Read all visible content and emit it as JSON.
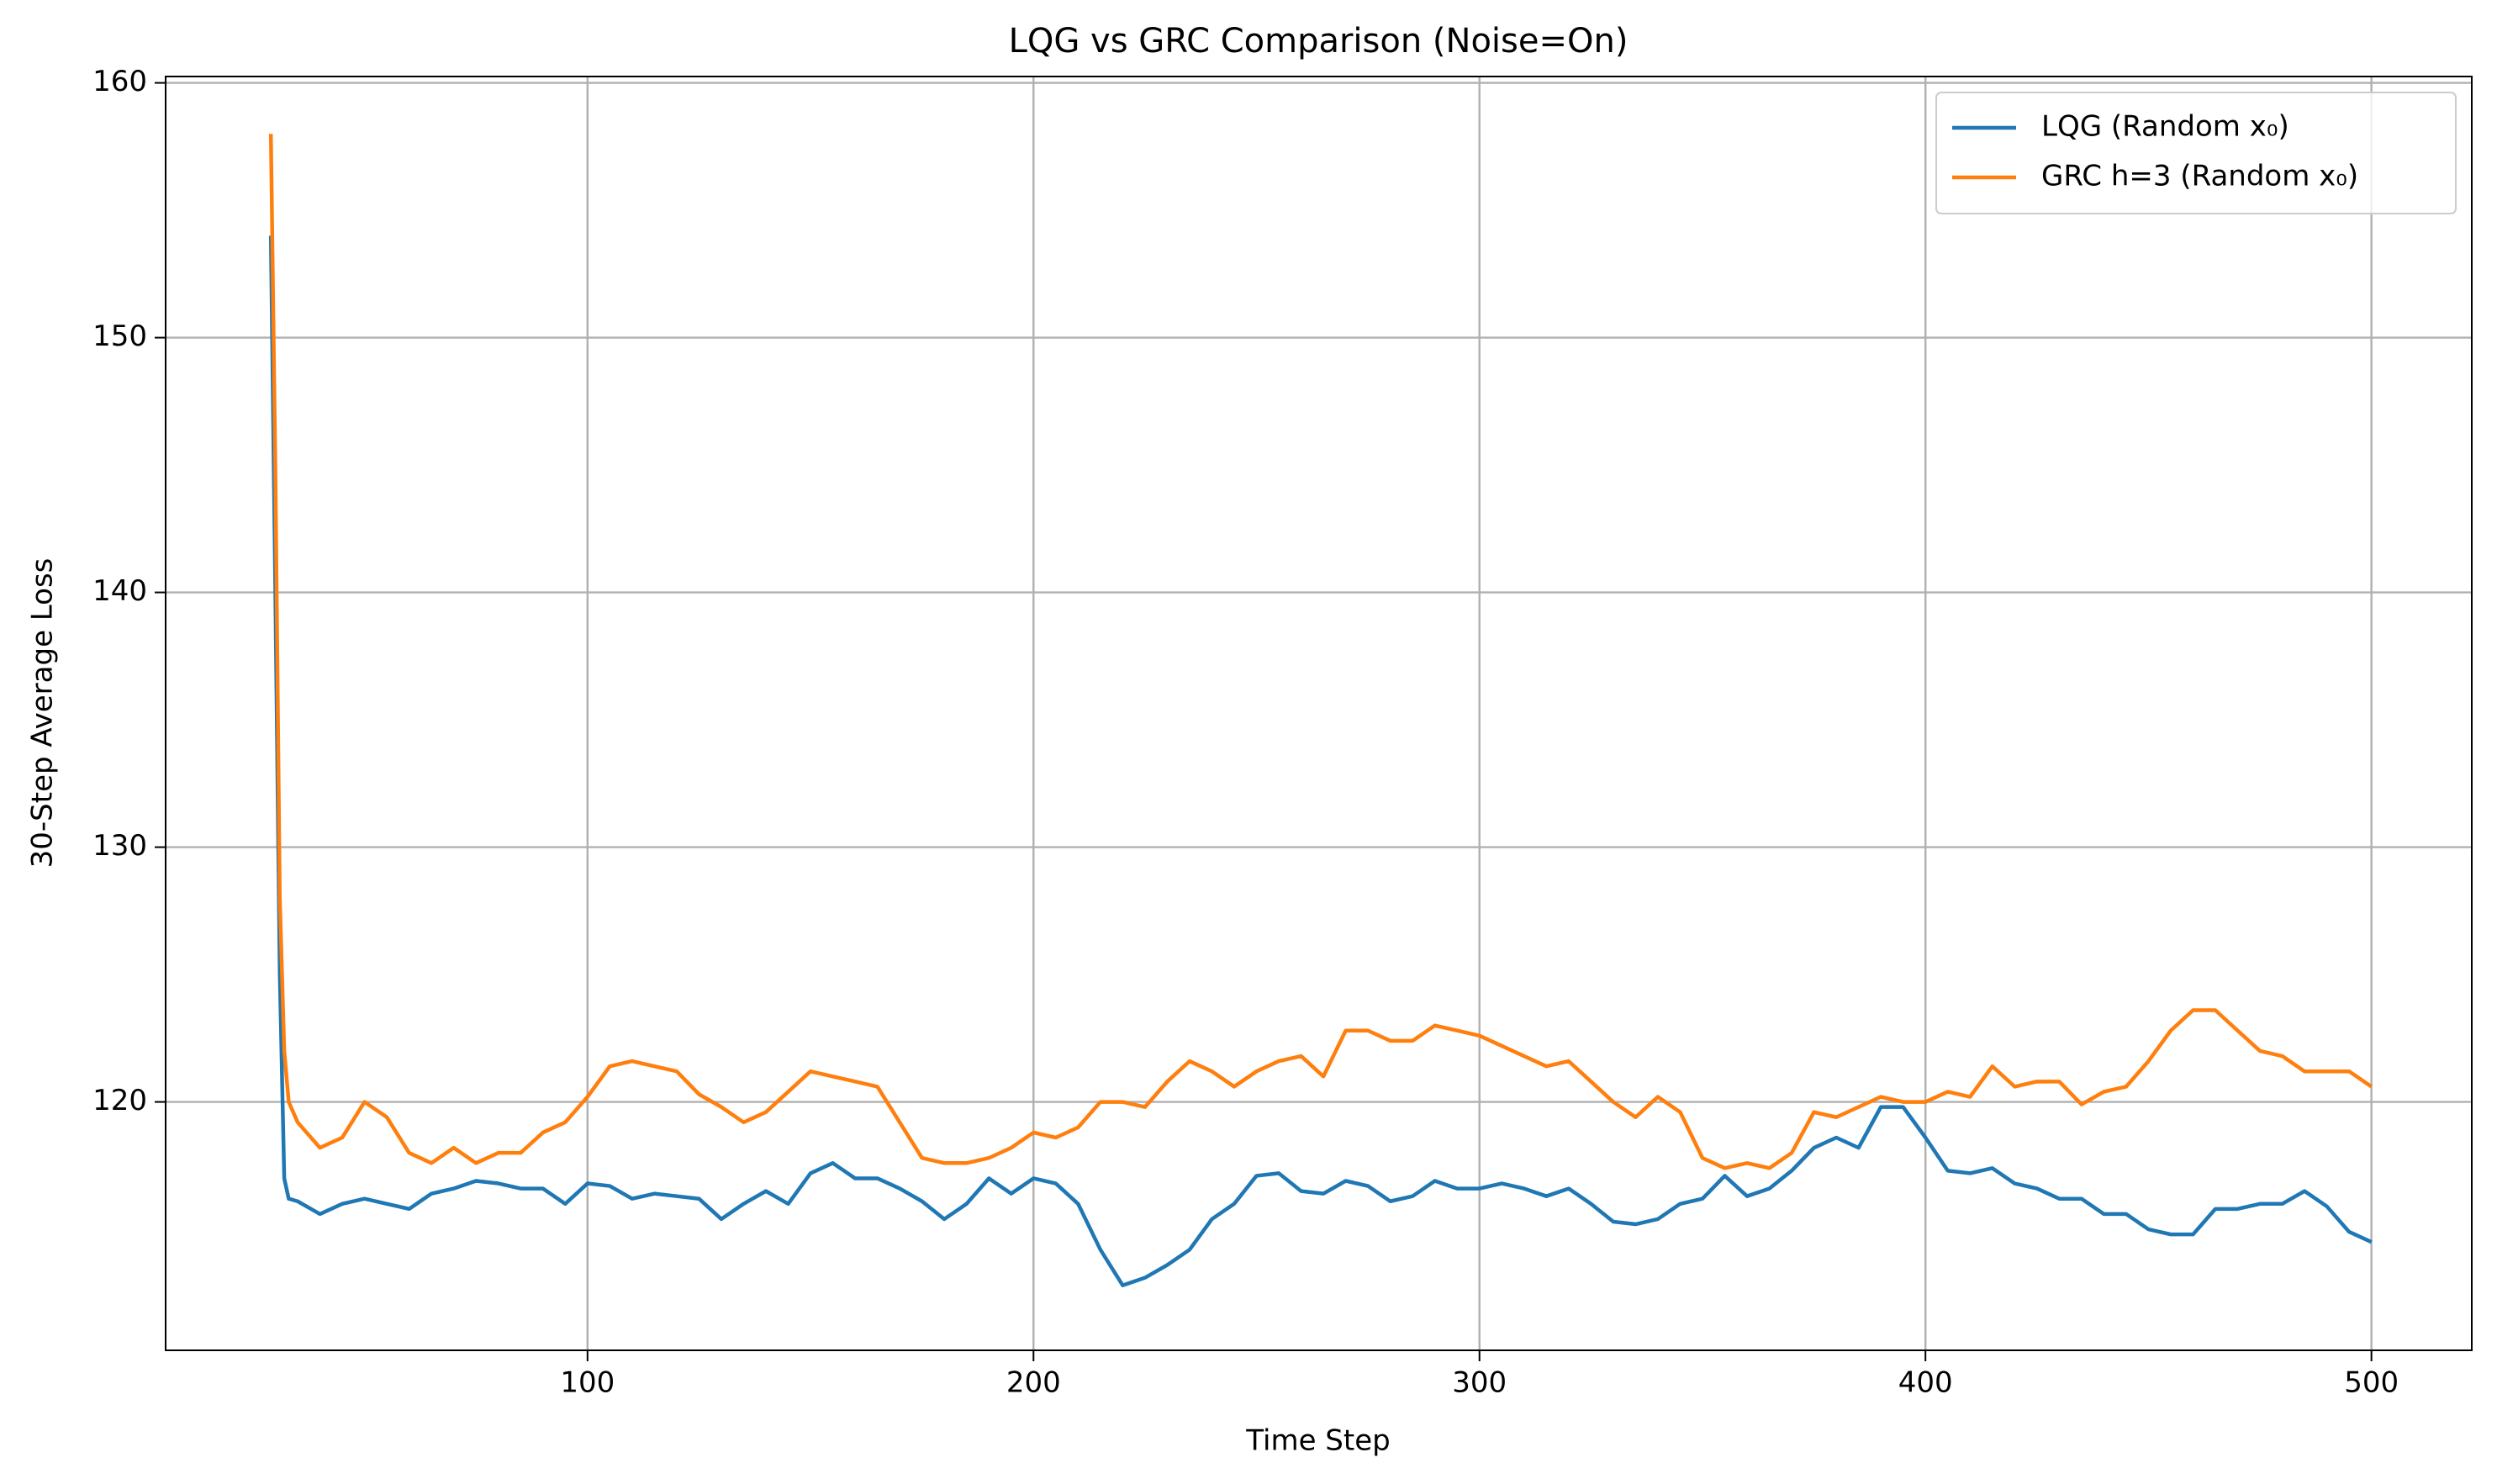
{
  "chart_data": {
    "type": "line",
    "title": "LQG vs GRC Comparison (Noise=On)",
    "x_label": "Time Step",
    "y_label": "30-Step Average Loss",
    "x": [
      29,
      30,
      31,
      32,
      33,
      35,
      40,
      45,
      50,
      55,
      60,
      65,
      70,
      75,
      80,
      85,
      90,
      95,
      100,
      105,
      110,
      115,
      120,
      125,
      130,
      135,
      140,
      145,
      150,
      155,
      160,
      165,
      170,
      175,
      180,
      185,
      190,
      195,
      200,
      205,
      210,
      215,
      220,
      225,
      230,
      235,
      240,
      245,
      250,
      255,
      260,
      265,
      270,
      275,
      280,
      285,
      290,
      295,
      300,
      305,
      310,
      315,
      320,
      325,
      330,
      335,
      340,
      345,
      350,
      355,
      360,
      365,
      370,
      375,
      380,
      385,
      390,
      395,
      400,
      405,
      410,
      415,
      420,
      425,
      430,
      435,
      440,
      445,
      450,
      455,
      460,
      465,
      470,
      475,
      480,
      485,
      490,
      495,
      500
    ],
    "series": [
      {
        "name": "LQG (Random x₀)",
        "color": "#1f77b4",
        "values": [
          154,
          140,
          125,
          117,
          116.2,
          116.1,
          115.6,
          116,
          116.2,
          116,
          115.8,
          116.4,
          116.6,
          116.9,
          116.8,
          116.6,
          116.6,
          116,
          116.8,
          116.7,
          116.2,
          116.4,
          116.3,
          116.2,
          115.4,
          116,
          116.5,
          116,
          117.2,
          117.6,
          117,
          117,
          116.6,
          116.1,
          115.4,
          116,
          117,
          116.4,
          117,
          116.8,
          116,
          114.2,
          112.8,
          113.1,
          113.6,
          114.2,
          115.4,
          116,
          117.1,
          117.2,
          116.5,
          116.4,
          116.9,
          116.7,
          116.1,
          116.3,
          116.9,
          116.6,
          116.6,
          116.8,
          116.6,
          116.3,
          116.6,
          116,
          115.3,
          115.2,
          115.4,
          116,
          116.2,
          117.1,
          116.3,
          116.6,
          117.3,
          118.2,
          118.6,
          118.2,
          119.8,
          119.8,
          118.6,
          117.3,
          117.2,
          117.4,
          116.8,
          116.6,
          116.2,
          116.2,
          115.6,
          115.6,
          115,
          114.8,
          114.8,
          115.8,
          115.8,
          116,
          116,
          116.5,
          115.9,
          114.9,
          114.5
        ]
      },
      {
        "name": "GRC h=3 (Random x₀)",
        "color": "#ff7f0e",
        "values": [
          158,
          145,
          128,
          122,
          120,
          119.2,
          118.2,
          118.6,
          120,
          119.4,
          118,
          117.6,
          118.2,
          117.6,
          118,
          118,
          118.8,
          119.2,
          120.2,
          121.4,
          121.6,
          121.4,
          121.2,
          120.3,
          119.8,
          119.2,
          119.6,
          120.4,
          121.2,
          121,
          120.8,
          120.6,
          119.2,
          117.8,
          117.6,
          117.6,
          117.8,
          118.2,
          118.8,
          118.6,
          119,
          120,
          120,
          119.8,
          120.8,
          121.6,
          121.2,
          120.6,
          121.2,
          121.6,
          121.8,
          121,
          122.8,
          122.8,
          122.4,
          122.4,
          123,
          122.8,
          122.6,
          122.2,
          121.8,
          121.4,
          121.6,
          120.8,
          120,
          119.4,
          120.2,
          119.6,
          117.8,
          117.4,
          117.6,
          117.4,
          118,
          119.6,
          119.4,
          119.8,
          120.2,
          120,
          120,
          120.4,
          120.2,
          121.4,
          120.6,
          120.8,
          120.8,
          119.9,
          120.4,
          120.6,
          121.6,
          122.8,
          123.6,
          123.6,
          122.8,
          122,
          121.8,
          121.2,
          121.2,
          121.2,
          120.6
        ]
      }
    ],
    "xlim": [
      5.4,
      522.5
    ],
    "ylim": [
      110.25,
      160.25
    ],
    "xticks": [
      100,
      200,
      300,
      400,
      500
    ],
    "yticks": [
      120,
      130,
      140,
      150,
      160
    ],
    "grid": true,
    "legend": "upper right"
  }
}
